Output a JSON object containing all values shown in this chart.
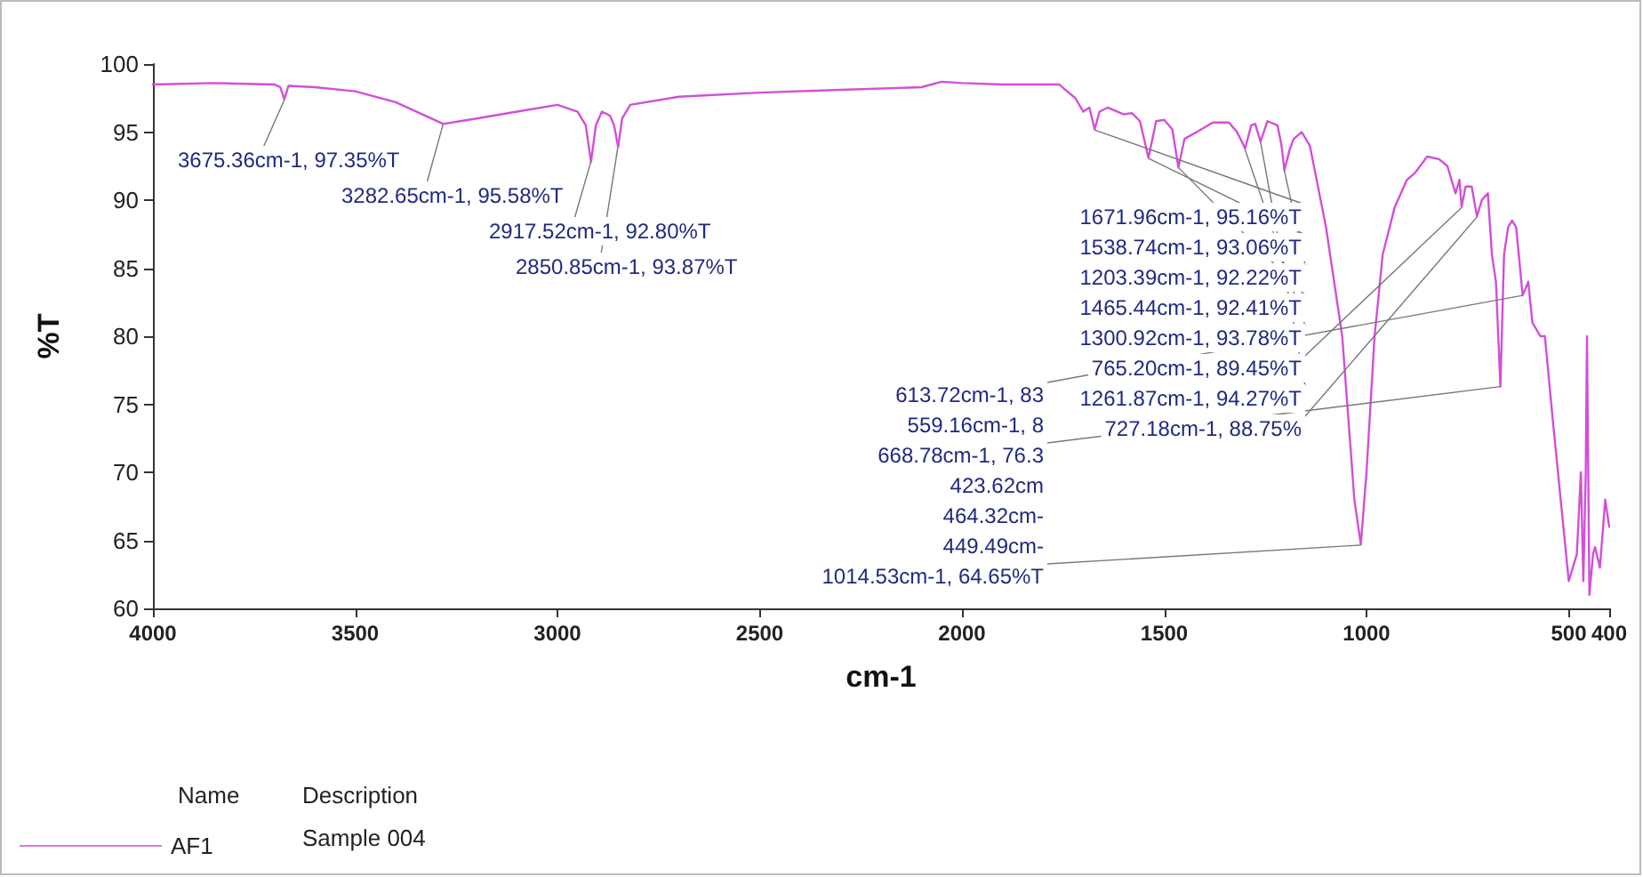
{
  "chart_data": {
    "type": "line",
    "xlabel": "cm-1",
    "ylabel": "%T",
    "xlim": [
      4000,
      400
    ],
    "xticks": [
      4000,
      3500,
      3000,
      2500,
      2000,
      1500,
      1000,
      500,
      400
    ],
    "ylim": [
      60,
      100
    ],
    "yticks": [
      60,
      65,
      70,
      75,
      80,
      85,
      90,
      95,
      100
    ],
    "grid": false,
    "legend": "bottom left",
    "marker": "none",
    "line_style": "solid",
    "series": [
      {
        "name": "AF1",
        "color": "#d24fd8",
        "x": [
          4000,
          3850,
          3700,
          3685,
          3675,
          3665,
          3600,
          3500,
          3400,
          3282,
          3200,
          3100,
          3000,
          2950,
          2930,
          2917,
          2905,
          2890,
          2870,
          2860,
          2850,
          2840,
          2820,
          2700,
          2500,
          2300,
          2100,
          2050,
          2000,
          1900,
          1760,
          1740,
          1720,
          1700,
          1685,
          1672,
          1660,
          1640,
          1600,
          1580,
          1560,
          1539,
          1520,
          1500,
          1480,
          1465,
          1450,
          1420,
          1380,
          1340,
          1320,
          1300,
          1285,
          1275,
          1262,
          1245,
          1220,
          1210,
          1203,
          1190,
          1180,
          1160,
          1140,
          1130,
          1100,
          1080,
          1060,
          1040,
          1030,
          1014,
          1000,
          990,
          980,
          960,
          930,
          900,
          880,
          850,
          820,
          800,
          790,
          780,
          770,
          765,
          755,
          740,
          727,
          715,
          700,
          690,
          680,
          669,
          660,
          650,
          640,
          630,
          614,
          600,
          590,
          570,
          559,
          540,
          520,
          500,
          490,
          480,
          470,
          464,
          458,
          455,
          449,
          440,
          435,
          423,
          415,
          410,
          400
        ],
        "values": [
          98.5,
          98.6,
          98.5,
          98.3,
          97.4,
          98.4,
          98.3,
          98.0,
          97.2,
          95.6,
          96.0,
          96.5,
          97.0,
          96.5,
          95.5,
          92.8,
          95.5,
          96.5,
          96.2,
          95.5,
          93.9,
          96.0,
          97.0,
          97.6,
          97.9,
          98.1,
          98.3,
          98.7,
          98.6,
          98.5,
          98.5,
          98.0,
          97.5,
          96.5,
          96.8,
          95.2,
          96.5,
          96.8,
          96.3,
          96.4,
          95.8,
          93.1,
          95.8,
          95.9,
          95.2,
          92.4,
          94.5,
          95.0,
          95.7,
          95.7,
          95.0,
          93.8,
          95.5,
          95.6,
          94.3,
          95.8,
          95.5,
          94.0,
          92.2,
          93.7,
          94.5,
          95.0,
          94.0,
          92.5,
          88.0,
          84.0,
          80.0,
          72.0,
          68.0,
          64.7,
          70.0,
          75.0,
          80.0,
          86.0,
          89.5,
          91.5,
          92.0,
          93.2,
          93.0,
          92.5,
          91.5,
          90.5,
          91.5,
          89.5,
          91.0,
          91.0,
          88.8,
          90.0,
          90.5,
          86.0,
          84.0,
          76.3,
          86.0,
          88.0,
          88.5,
          88.0,
          83.0,
          84.0,
          81.0,
          80.0,
          80.0,
          74.0,
          68.0,
          62.0,
          63.0,
          64.0,
          70.0,
          62.0,
          70.0,
          80.0,
          61.0,
          64.0,
          64.5,
          63.0,
          66.0,
          68.0,
          66.0
        ]
      }
    ],
    "annotations": [
      {
        "text": "3675.36cm-1, 97.35%T",
        "x": 3675.36,
        "y": 97.35
      },
      {
        "text": "3282.65cm-1, 95.58%T",
        "x": 3282.65,
        "y": 95.58
      },
      {
        "text": "2917.52cm-1, 92.80%T",
        "x": 2917.52,
        "y": 92.8
      },
      {
        "text": "2850.85cm-1, 93.87%T",
        "x": 2850.85,
        "y": 93.87
      },
      {
        "text": "1671.96cm-1, 95.16%T",
        "x": 1671.96,
        "y": 95.16
      },
      {
        "text": "1538.74cm-1, 93.06%T",
        "x": 1538.74,
        "y": 93.06
      },
      {
        "text": "1203.39cm-1, 92.22%T",
        "x": 1203.39,
        "y": 92.22
      },
      {
        "text": "1465.44cm-1, 92.41%T",
        "x": 1465.44,
        "y": 92.41
      },
      {
        "text": "1300.92cm-1, 93.78%T",
        "x": 1300.92,
        "y": 93.78
      },
      {
        "text": "765.20cm-1, 89.45%T",
        "x": 765.2,
        "y": 89.45
      },
      {
        "text": "1261.87cm-1, 94.27%T",
        "x": 1261.87,
        "y": 94.27
      },
      {
        "text": "727.18cm-1, 88.75%",
        "x": 727.18,
        "y": 88.75
      },
      {
        "text": "613.72cm-1, 83",
        "x": 613.72,
        "y": 83
      },
      "559.16cm-1, 8",
      {
        "text": "668.78cm-1, 76.3",
        "x": 668.78,
        "y": 76.3
      },
      "423.62cm",
      "464.32cm-",
      "449.49cm-",
      {
        "text": "1014.53cm-1, 64.65%T",
        "x": 1014.53,
        "y": 64.65
      },
      "Name",
      "Description",
      "Sample 004"
    ]
  }
}
